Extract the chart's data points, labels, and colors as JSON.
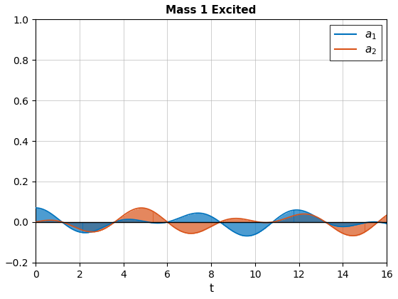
{
  "title": "Mass 1 Excited",
  "xlabel": "t",
  "xlim": [
    0,
    16
  ],
  "ylim": [
    -0.2,
    1.0
  ],
  "yticks": [
    -0.2,
    0.0,
    0.2,
    0.4,
    0.6,
    0.8,
    1.0
  ],
  "xticks": [
    0,
    2,
    4,
    6,
    8,
    10,
    12,
    14,
    16
  ],
  "color_a1": "#0072BD",
  "color_a2": "#D95319",
  "n_points": 500,
  "t_max": 16.0,
  "omega1": 1.0,
  "omega2": 1.618,
  "scale": 0.07,
  "background": "#ffffff",
  "grid_color": "#b0b0b0"
}
